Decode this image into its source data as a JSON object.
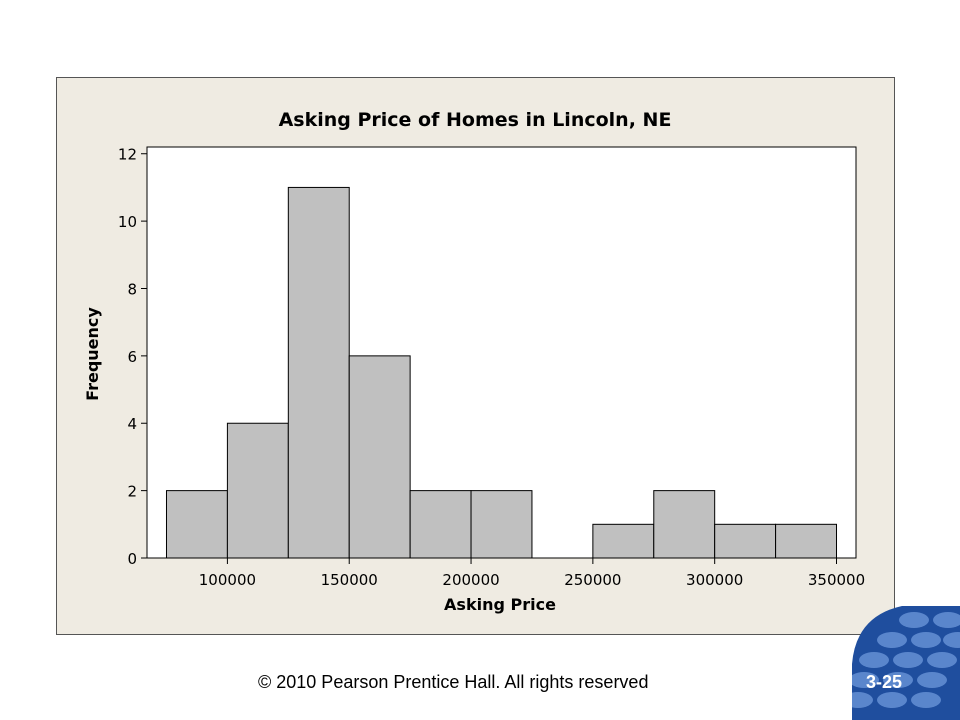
{
  "chart_data": {
    "type": "bar",
    "title": "Asking Price of Homes in Lincoln, NE",
    "xlabel": "Asking Price",
    "ylabel": "Frequency",
    "bins": [
      {
        "start": 75000,
        "end": 100000,
        "count": 2
      },
      {
        "start": 100000,
        "end": 125000,
        "count": 4
      },
      {
        "start": 125000,
        "end": 150000,
        "count": 11
      },
      {
        "start": 150000,
        "end": 175000,
        "count": 6
      },
      {
        "start": 175000,
        "end": 200000,
        "count": 2
      },
      {
        "start": 200000,
        "end": 225000,
        "count": 2
      },
      {
        "start": 225000,
        "end": 250000,
        "count": 0
      },
      {
        "start": 250000,
        "end": 275000,
        "count": 1
      },
      {
        "start": 275000,
        "end": 300000,
        "count": 2
      },
      {
        "start": 300000,
        "end": 325000,
        "count": 1
      },
      {
        "start": 325000,
        "end": 350000,
        "count": 1
      }
    ],
    "xticks": [
      "100000",
      "150000",
      "200000",
      "250000",
      "300000",
      "350000"
    ],
    "yticks": [
      "0",
      "2",
      "4",
      "6",
      "8",
      "10",
      "12"
    ],
    "xlim": [
      67000,
      358000
    ],
    "ylim": [
      0,
      12.2
    ],
    "grid": false,
    "colors": {
      "bar": "#c0c0c0",
      "bar_edge": "#000000",
      "frame_bg": "#efebe2",
      "plot_bg": "#ffffff"
    }
  },
  "footer": {
    "copyright": "© 2010 Pearson Prentice Hall. All rights reserved"
  },
  "slide": {
    "number": "3-25",
    "logo_icon": "pearson-ellipse-logo-icon",
    "logo_color": "#1f4e9e"
  }
}
